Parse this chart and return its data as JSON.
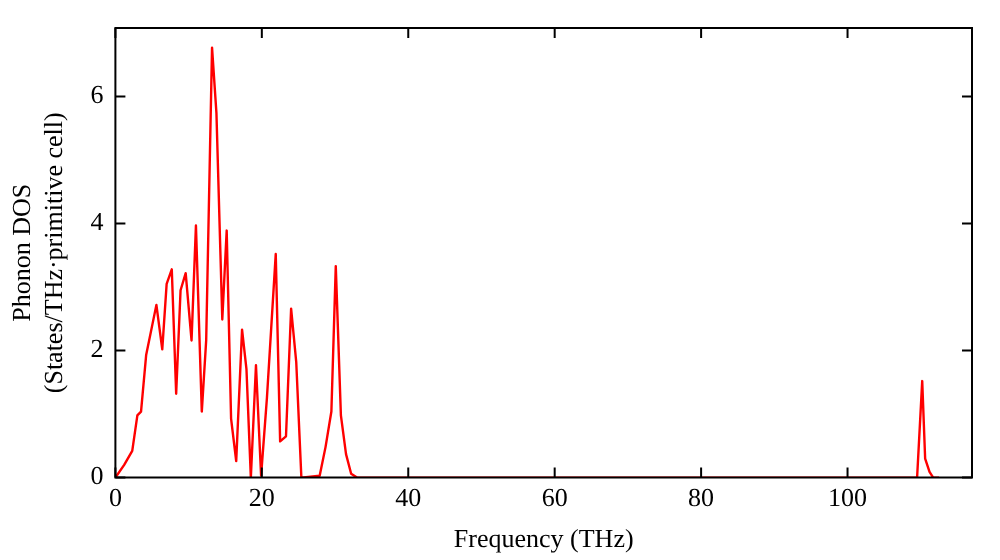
{
  "chart_data": {
    "type": "line",
    "xlabel": "Frequency (THz)",
    "ylabel": "Phonon DOS\n(States/THz·primitive cell)",
    "series": [
      {
        "color": "#ff0000",
        "x": [
          0,
          1.2,
          2.3,
          3.0,
          3.5,
          4.2,
          5.6,
          6.4,
          7.0,
          7.7,
          8.3,
          8.9,
          9.6,
          10.4,
          11.0,
          11.8,
          12.4,
          13.2,
          13.8,
          14.6,
          15.2,
          15.8,
          16.5,
          17.3,
          17.9,
          18.5,
          19.2,
          19.9,
          20.7,
          21.9,
          22.5,
          23.3,
          24.0,
          24.7,
          25.4,
          27.9,
          28.7,
          29.5,
          30.1,
          30.8,
          31.5,
          32.2,
          33.0,
          109.5,
          110.2,
          110.6,
          111.2,
          111.7,
          112.5
        ],
        "values": [
          0,
          0.2,
          0.42,
          0.98,
          1.04,
          1.93,
          2.72,
          2.02,
          3.05,
          3.28,
          1.32,
          2.95,
          3.22,
          2.16,
          3.97,
          1.04,
          2.16,
          6.77,
          5.74,
          2.49,
          3.89,
          0.93,
          0.26,
          2.33,
          1.71,
          0,
          1.77,
          0.03,
          1.26,
          3.52,
          0.57,
          0.65,
          2.66,
          1.82,
          0,
          0.03,
          0.48,
          1.04,
          3.33,
          0.98,
          0.37,
          0.06,
          0,
          0,
          1.52,
          0.3,
          0.09,
          0,
          0
        ]
      }
    ],
    "xlim": [
      0,
      117
    ],
    "xticks": [
      0,
      20,
      40,
      60,
      80,
      100
    ],
    "ylim": [
      0,
      7.08
    ],
    "yticks": [
      0,
      2,
      4,
      6
    ],
    "grid": false,
    "legend": false,
    "marker": "none",
    "line_style": "solid"
  }
}
